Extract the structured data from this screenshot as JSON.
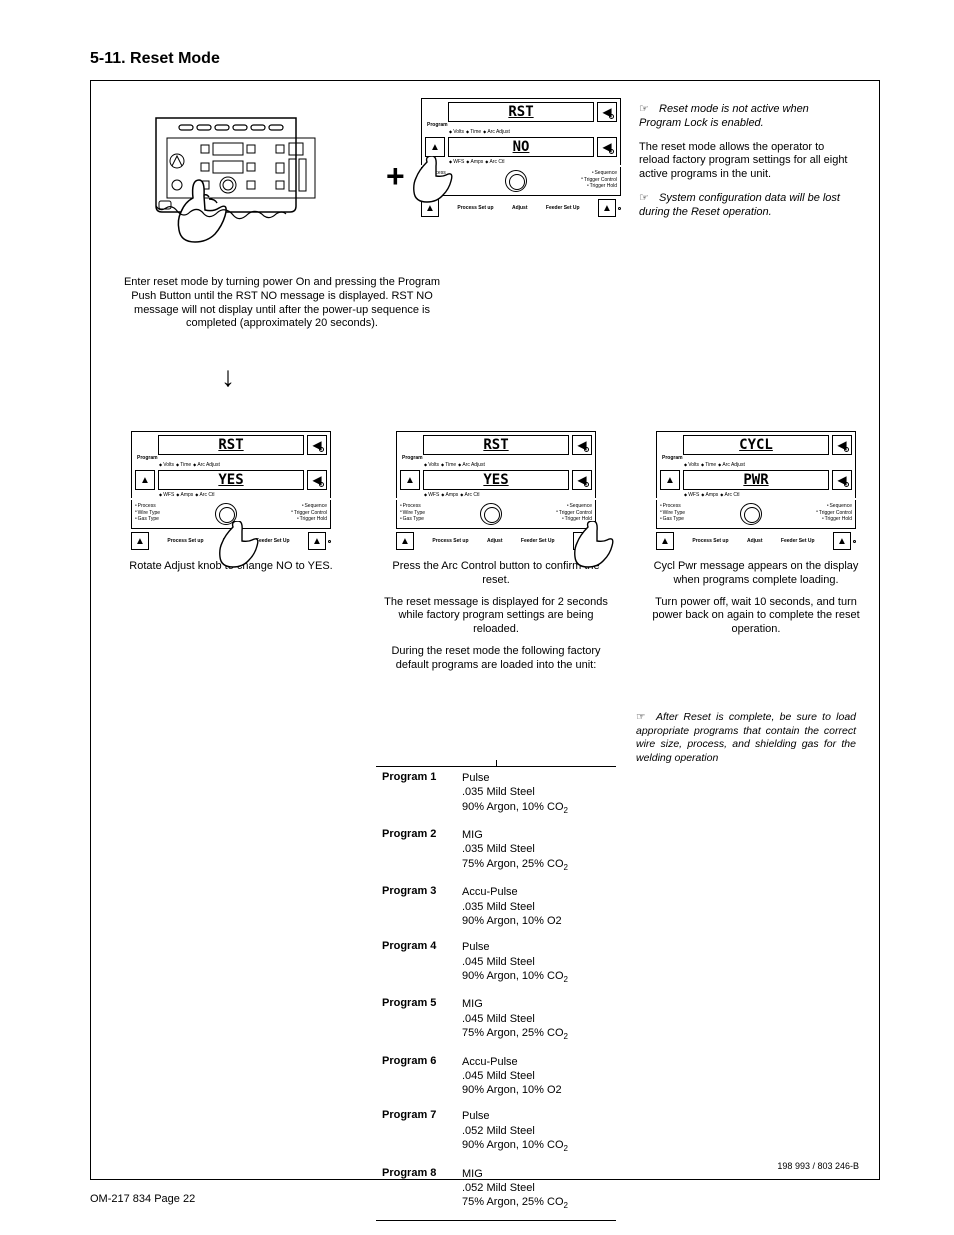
{
  "section_number": "5-11.",
  "section_title": "Reset Mode",
  "plus_symbol": "+",
  "arrow_down": "↓",
  "panels": {
    "rst_no": {
      "line1": "RST",
      "line2": "NO"
    },
    "rst_yes": {
      "line1": "RST",
      "line2": "YES"
    },
    "cycl_pwr": {
      "line1": "CYCL",
      "line2": "PWR"
    }
  },
  "panel_labels": {
    "program": "Program",
    "volts": "Volts",
    "time": "Time",
    "arc_adj": "Arc Adjust",
    "wfs": "WFS",
    "amps": "Amps",
    "arc_ctl": "Arc Ctl",
    "process": "Process",
    "wire_type": "Wire Type",
    "gas_type": "Gas Type",
    "sequence": "Sequence",
    "trigger_control": "Trigger Control",
    "trigger_hold": "Trigger Hold",
    "process_setup": "Process Set up",
    "adjust": "Adjust",
    "feeder_setup": "Feeder Set Up"
  },
  "caption1": "Enter reset mode by turning power On and pressing the Program Push Button until the RST NO message is displayed. RST NO  message will not display until after the power-up sequence is completed (approximately 20 seconds).",
  "notes": {
    "n1": "Reset mode is not active when Program Lock is enabled.",
    "n2": "The reset mode allows the operator to reload factory program settings for all eight active programs in the unit.",
    "n3": "System configuration data will be lost during the Reset operation."
  },
  "colA_caption": "Rotate Adjust knob to change NO to YES.",
  "colB_captions": [
    "Press the Arc Control button to confirm the reset.",
    "The reset message is displayed for 2 seconds while factory program settings are being reloaded.",
    "During the reset mode the following factory default programs are loaded into the unit:"
  ],
  "colC_captions": [
    "Cycl Pwr message appears on the display when programs complete loading.",
    "Turn power off, wait 10 seconds, and turn power back on again to complete the reset operation."
  ],
  "colC_note": "After Reset is complete, be sure to load appropriate programs that contain the correct wire size, process, and shielding gas for the welding operation",
  "programs": [
    {
      "name": "Program 1",
      "type": "Pulse",
      "steel": ".035 Mild Steel",
      "gas": "90% Argon, 10% CO",
      "sub": "2"
    },
    {
      "name": "Program 2",
      "type": "MIG",
      "steel": ".035 Mild Steel",
      "gas": "75% Argon, 25% CO",
      "sub": "2"
    },
    {
      "name": "Program 3",
      "type": "Accu-Pulse",
      "steel": ".035 Mild Steel",
      "gas": "90% Argon, 10% O2",
      "sub": ""
    },
    {
      "name": "Program 4",
      "type": "Pulse",
      "steel": ".045 Mild Steel",
      "gas": "90% Argon, 10% CO",
      "sub": "2"
    },
    {
      "name": "Program 5",
      "type": "MIG",
      "steel": ".045 Mild Steel",
      "gas": "75% Argon, 25% CO",
      "sub": "2"
    },
    {
      "name": "Program 6",
      "type": "Accu-Pulse",
      "steel": ".045 Mild Steel",
      "gas": "90% Argon, 10% O2",
      "sub": ""
    },
    {
      "name": "Program 7",
      "type": "Pulse",
      "steel": ".052 Mild Steel",
      "gas": "90% Argon, 10% CO",
      "sub": "2"
    },
    {
      "name": "Program 8",
      "type": "MIG",
      "steel": ".052 Mild Steel",
      "gas": "75% Argon, 25% CO",
      "sub": "2"
    }
  ],
  "ref_number": "198 993 / 803 246-B",
  "footer": "OM-217 834 Page 22",
  "hand_glyph": "☞"
}
